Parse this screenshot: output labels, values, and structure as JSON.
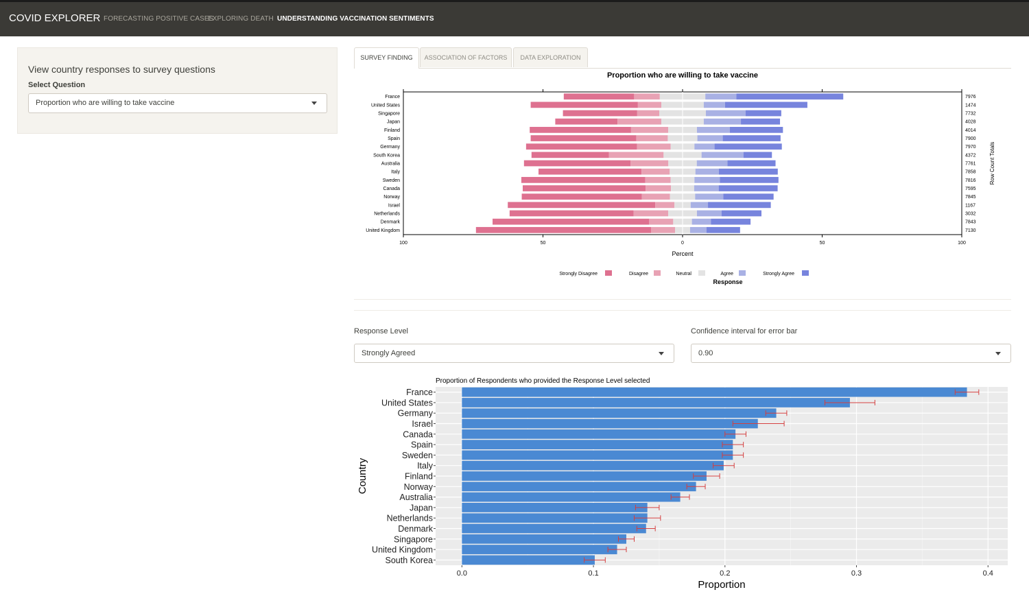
{
  "navbar": {
    "brand": "COVID EXPLORER",
    "items": [
      {
        "label": "FORECASTING POSITIVE CASES"
      },
      {
        "label": "EXPLORING DEATH"
      },
      {
        "label": "UNDERSTANDING VACCINATION SENTIMENTS"
      }
    ]
  },
  "sidebar": {
    "title": "View country responses to survey questions",
    "select_label": "Select Question",
    "selected_question": "Proportion who are willing to take vaccine"
  },
  "tabs": [
    {
      "label": "SURVEY FINDING"
    },
    {
      "label": "ASSOCIATION OF FACTORS"
    },
    {
      "label": "DATA EXPLORATION"
    }
  ],
  "controls": {
    "response_level_label": "Response Level",
    "response_level_value": "Strongly Agreed",
    "confidence_label": "Confidence interval for error bar",
    "confidence_value": "0.90"
  },
  "colors": {
    "strongly_disagree": "#de7190",
    "disagree": "#e8a2b4",
    "neutral": "#e3e3e3",
    "agree": "#a9b1e4",
    "strongly_agree": "#7784dd",
    "bar_blue": "#4a89d3",
    "error_bar": "#d43f3f",
    "panel_bg": "#ebebeb"
  },
  "chart_data": [
    {
      "type": "bar",
      "subtype": "diverging-stacked",
      "title": "Proportion who are willing to take vaccine",
      "xlabel": "Percent",
      "right_axis_label": "Row Count Totals",
      "x_ticks": [
        "100",
        "50",
        "0",
        "50",
        "100"
      ],
      "xlim": [
        -100,
        100
      ],
      "legend_title": "Response",
      "legend_position": "bottom",
      "legend": [
        "Strongly Disagree",
        "Disagree",
        "Neutral",
        "Agree",
        "Strongly Agree"
      ],
      "categories": [
        "France",
        "United States",
        "Singapore",
        "Japan",
        "Finland",
        "Spain",
        "Germany",
        "South Korea",
        "Australia",
        "Italy",
        "Sweden",
        "Canada",
        "Norway",
        "Israel",
        "Netherlands",
        "Denmark",
        "United Kingdom"
      ],
      "row_totals": [
        "7976",
        "1474",
        "7732",
        "4028",
        "4014",
        "7900",
        "7970",
        "4372",
        "7761",
        "7858",
        "7816",
        "7595",
        "7845",
        "1167",
        "3032",
        "7843",
        "7130"
      ],
      "series": [
        {
          "name": "Strongly Disagree",
          "values": [
            25.2,
            38.4,
            26.6,
            22.3,
            36.3,
            37.8,
            39.7,
            27.7,
            38.2,
            36.9,
            44.4,
            44.0,
            43.0,
            52.8,
            44.4,
            56.1,
            62.7
          ]
        },
        {
          "name": "Disagree",
          "values": [
            9.2,
            8.4,
            7.9,
            15.7,
            13.3,
            11.3,
            12.1,
            19.6,
            13.5,
            10.1,
            9.1,
            9.1,
            10.1,
            6.9,
            12.4,
            8.6,
            8.6
          ]
        },
        {
          "name": "Neutral",
          "values": [
            16.3,
            15.2,
            16.7,
            15.2,
            10.3,
            10.6,
            8.5,
            13.6,
            10.2,
            9.2,
            8.5,
            8.3,
            9.0,
            5.8,
            10.3,
            6.7,
            5.4
          ]
        },
        {
          "name": "Agree",
          "values": [
            11.1,
            7.6,
            14.2,
            13.3,
            11.8,
            9.1,
            7.2,
            15.0,
            11.0,
            8.4,
            9.1,
            8.8,
            10.1,
            6.2,
            8.8,
            6.8,
            5.9
          ]
        },
        {
          "name": "Strongly Agree",
          "values": [
            38.3,
            29.5,
            12.8,
            14.0,
            19.0,
            20.7,
            24.1,
            10.2,
            17.2,
            21.1,
            21.0,
            21.1,
            18.0,
            22.5,
            14.3,
            14.2,
            12.0
          ]
        }
      ]
    },
    {
      "type": "bar",
      "subtype": "horizontal-with-error-bars",
      "title": "Proportion of Respondents who provided the Response Level selected",
      "xlabel": "Proportion",
      "ylabel": "Country",
      "xlim": [
        -0.02,
        0.415
      ],
      "x_ticks": [
        "0.0",
        "0.1",
        "0.2",
        "0.3",
        "0.4"
      ],
      "grid": true,
      "categories": [
        "France",
        "United States",
        "Germany",
        "Israel",
        "Canada",
        "Spain",
        "Sweden",
        "Italy",
        "Finland",
        "Norway",
        "Australia",
        "Japan",
        "Netherlands",
        "Denmark",
        "Singapore",
        "United Kingdom",
        "South Korea"
      ],
      "values": [
        0.384,
        0.295,
        0.239,
        0.225,
        0.208,
        0.206,
        0.206,
        0.199,
        0.186,
        0.178,
        0.166,
        0.141,
        0.141,
        0.14,
        0.125,
        0.118,
        0.101
      ],
      "ci_low": [
        0.375,
        0.276,
        0.231,
        0.206,
        0.2,
        0.198,
        0.198,
        0.191,
        0.176,
        0.171,
        0.159,
        0.132,
        0.131,
        0.133,
        0.119,
        0.111,
        0.093
      ],
      "ci_high": [
        0.393,
        0.314,
        0.247,
        0.245,
        0.216,
        0.214,
        0.214,
        0.207,
        0.196,
        0.185,
        0.173,
        0.15,
        0.151,
        0.147,
        0.131,
        0.125,
        0.109
      ]
    }
  ]
}
